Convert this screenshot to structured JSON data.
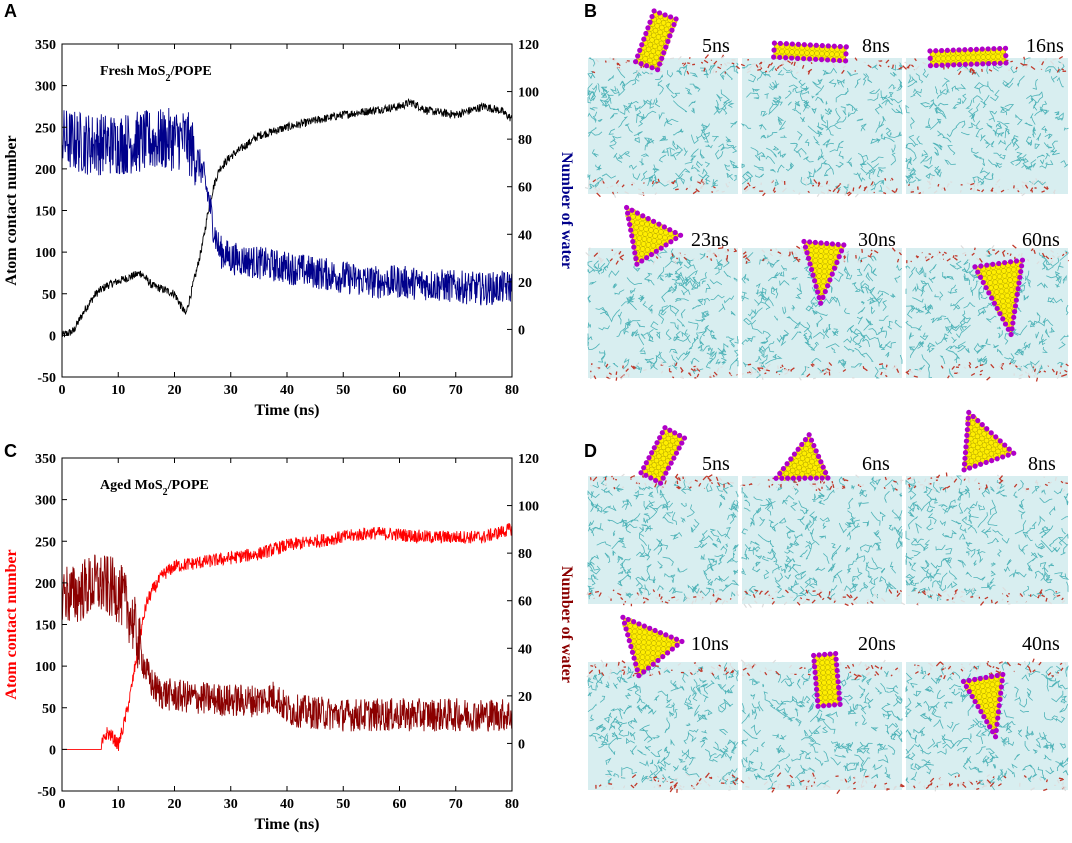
{
  "chart_data": [
    {
      "type": "line",
      "panel": "A",
      "annotation": "Fresh MoS",
      "annotation_sub": "2",
      "annotation_suffix": "/POPE",
      "xlabel": "Time (ns)",
      "ylabel_left": "Atom contact number",
      "ylabel_right": "Number of water",
      "xlim": [
        0,
        80
      ],
      "ylim_left": [
        -50,
        350
      ],
      "ylim_right": [
        -20,
        120
      ],
      "x_ticks": [
        0,
        10,
        20,
        30,
        40,
        50,
        60,
        70,
        80
      ],
      "yl_ticks": [
        -50,
        0,
        50,
        100,
        150,
        200,
        250,
        300,
        350
      ],
      "yr_ticks": [
        0,
        20,
        40,
        60,
        80,
        100,
        120
      ],
      "colors": {
        "left": "#000000",
        "right": "#00008b"
      },
      "series": [
        {
          "name": "Atom contact number",
          "axis": "left",
          "color": "#000000",
          "x": [
            0,
            2,
            4,
            6,
            8,
            10,
            12,
            14,
            16,
            18,
            20,
            22,
            24,
            25,
            26,
            27,
            28,
            30,
            32,
            35,
            40,
            45,
            50,
            55,
            60,
            62,
            65,
            70,
            75,
            78,
            80
          ],
          "y": [
            0,
            5,
            30,
            50,
            60,
            65,
            70,
            75,
            60,
            55,
            50,
            25,
            80,
            110,
            150,
            180,
            200,
            215,
            225,
            240,
            250,
            258,
            265,
            270,
            275,
            280,
            270,
            265,
            275,
            270,
            260
          ]
        },
        {
          "name": "Number of water",
          "axis": "right",
          "color": "#00008b",
          "x": [
            0,
            5,
            10,
            15,
            20,
            22,
            24,
            25,
            26,
            27,
            28,
            30,
            35,
            40,
            45,
            50,
            55,
            60,
            65,
            70,
            75,
            80
          ],
          "y": [
            80,
            78,
            78,
            79,
            80,
            80,
            72,
            66,
            56,
            42,
            33,
            30,
            28,
            26,
            24,
            22,
            20,
            20,
            19,
            18,
            17,
            18
          ]
        }
      ]
    },
    {
      "type": "line",
      "panel": "C",
      "annotation": "Aged MoS",
      "annotation_sub": "2",
      "annotation_suffix": "/POPE",
      "xlabel": "Time (ns)",
      "ylabel_left": "Atom contact number",
      "ylabel_right": "Number of water",
      "xlim": [
        0,
        80
      ],
      "ylim_left": [
        -50,
        350
      ],
      "ylim_right": [
        -20,
        120
      ],
      "x_ticks": [
        0,
        10,
        20,
        30,
        40,
        50,
        60,
        70,
        80
      ],
      "yl_ticks": [
        -50,
        0,
        50,
        100,
        150,
        200,
        250,
        300,
        350
      ],
      "yr_ticks": [
        0,
        20,
        40,
        60,
        80,
        100,
        120
      ],
      "colors": {
        "left": "#ff0000",
        "right": "#8b0000"
      },
      "series": [
        {
          "name": "Atom contact number",
          "axis": "left",
          "color": "#ff0000",
          "x": [
            0,
            5,
            7,
            8,
            9,
            10,
            11,
            12,
            13,
            14,
            15,
            16,
            17,
            18,
            20,
            25,
            30,
            35,
            40,
            45,
            50,
            55,
            60,
            65,
            70,
            75,
            80
          ],
          "y": [
            0,
            0,
            5,
            20,
            15,
            5,
            30,
            60,
            100,
            140,
            175,
            190,
            200,
            210,
            220,
            225,
            230,
            235,
            245,
            250,
            255,
            260,
            258,
            255,
            255,
            255,
            265
          ]
        },
        {
          "name": "Number of water",
          "axis": "right",
          "color": "#8b0000",
          "x": [
            0,
            2,
            4,
            6,
            8,
            10,
            11,
            12,
            13,
            14,
            15,
            16,
            17,
            18,
            20,
            25,
            30,
            35,
            38,
            40,
            45,
            50,
            55,
            60,
            65,
            70,
            75,
            80
          ],
          "y": [
            64,
            62,
            65,
            67,
            66,
            64,
            60,
            55,
            48,
            38,
            30,
            25,
            22,
            21,
            20,
            19,
            18,
            18,
            20,
            14,
            13,
            12,
            12,
            12,
            12,
            12,
            12,
            12
          ]
        }
      ]
    }
  ],
  "panels": {
    "A": "A",
    "B": "B",
    "C": "C",
    "D": "D"
  },
  "snapshots_b": [
    "5ns",
    "8ns",
    "16ns",
    "23ns",
    "30ns",
    "60ns"
  ],
  "snapshots_d": [
    "5ns",
    "6ns",
    "8ns",
    "10ns",
    "20ns",
    "40ns"
  ],
  "colors": {
    "membrane_bg": "#d8eef0",
    "lipid_tail": "#4fb3b8",
    "headgroup_red": "#c0392b",
    "headgroup_white": "#dddddd",
    "mos2_yellow": "#ffee00",
    "mos2_purple": "#b000c8"
  }
}
